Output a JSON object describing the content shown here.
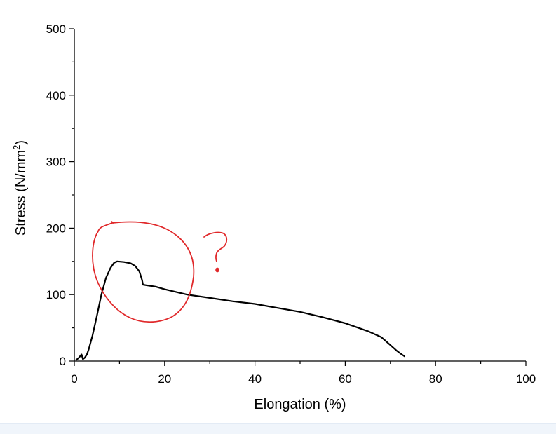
{
  "chart_data": {
    "type": "line",
    "xlabel": "Elongation (%)",
    "ylabel": "Stress (N/mm²)",
    "ylabel_base": "Stress (N/mm",
    "ylabel_sup": "2",
    "ylabel_close": ")",
    "xlim": [
      0,
      100
    ],
    "ylim": [
      0,
      500
    ],
    "x_ticks": [
      0,
      20,
      40,
      60,
      80,
      100
    ],
    "y_ticks": [
      0,
      100,
      200,
      300,
      400,
      500
    ],
    "x_minor_step": 10,
    "y_minor_step": 50,
    "grid": false,
    "legend": "none",
    "series": [
      {
        "color": "#000000",
        "points": [
          [
            0.3,
            1
          ],
          [
            1.0,
            5
          ],
          [
            1.6,
            10
          ],
          [
            1.9,
            3
          ],
          [
            2.3,
            5
          ],
          [
            2.8,
            10
          ],
          [
            3.2,
            18
          ],
          [
            4.0,
            38
          ],
          [
            5.0,
            68
          ],
          [
            6.0,
            100
          ],
          [
            7.0,
            125
          ],
          [
            8.0,
            140
          ],
          [
            8.8,
            148
          ],
          [
            9.5,
            150
          ],
          [
            11.0,
            149
          ],
          [
            12.5,
            147
          ],
          [
            13.5,
            143
          ],
          [
            14.4,
            135
          ],
          [
            15.0,
            122
          ],
          [
            15.2,
            115
          ],
          [
            16.0,
            114
          ],
          [
            18.0,
            112
          ],
          [
            20.0,
            108
          ],
          [
            25.0,
            100
          ],
          [
            30.0,
            95
          ],
          [
            35.0,
            90
          ],
          [
            40.0,
            86
          ],
          [
            45.0,
            80
          ],
          [
            50.0,
            74
          ],
          [
            55.0,
            66
          ],
          [
            60.0,
            57
          ],
          [
            65.0,
            45
          ],
          [
            68.0,
            36
          ],
          [
            70.0,
            24
          ],
          [
            71.5,
            15
          ],
          [
            72.5,
            10
          ],
          [
            73.2,
            7
          ]
        ]
      }
    ],
    "annotations": {
      "color": "#e0282a",
      "question_mark": "?"
    }
  }
}
